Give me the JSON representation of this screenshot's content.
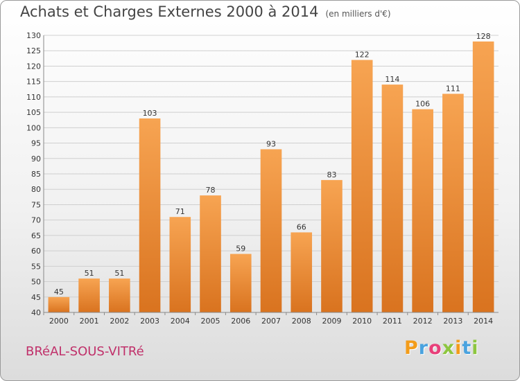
{
  "header": {
    "title": "Achats et Charges Externes 2000 à 2014",
    "unit": "(en milliers d'€)"
  },
  "footer": {
    "city": "BRéAL-SOUS-VITRé",
    "logo": [
      "P",
      "r",
      "o",
      "x",
      "i",
      "t",
      "i"
    ],
    "logo_colors": [
      "#f39c1a",
      "#4aa3df",
      "#e8407a",
      "#8dc63f",
      "#f39c1a",
      "#4aa3df",
      "#8dc63f"
    ]
  },
  "colors": {
    "bar_light": "#f7a452",
    "bar_dark": "#d9731f",
    "grid": "#cfcfcf",
    "axis_text": "#333333"
  },
  "chart_data": {
    "type": "bar",
    "title": "Achats et Charges Externes 2000 à 2014",
    "subtitle": "(en milliers d'€)",
    "categories": [
      "2000",
      "2001",
      "2002",
      "2003",
      "2004",
      "2005",
      "2006",
      "2007",
      "2008",
      "2009",
      "2010",
      "2011",
      "2012",
      "2013",
      "2014"
    ],
    "values": [
      45,
      51,
      51,
      103,
      71,
      78,
      59,
      93,
      66,
      83,
      122,
      114,
      106,
      111,
      128
    ],
    "ylim": [
      40,
      130
    ],
    "yticks": [
      40,
      45,
      50,
      55,
      60,
      65,
      70,
      75,
      80,
      85,
      90,
      95,
      100,
      105,
      110,
      115,
      120,
      125,
      130
    ],
    "grid": true,
    "xlabel": "",
    "ylabel": ""
  }
}
